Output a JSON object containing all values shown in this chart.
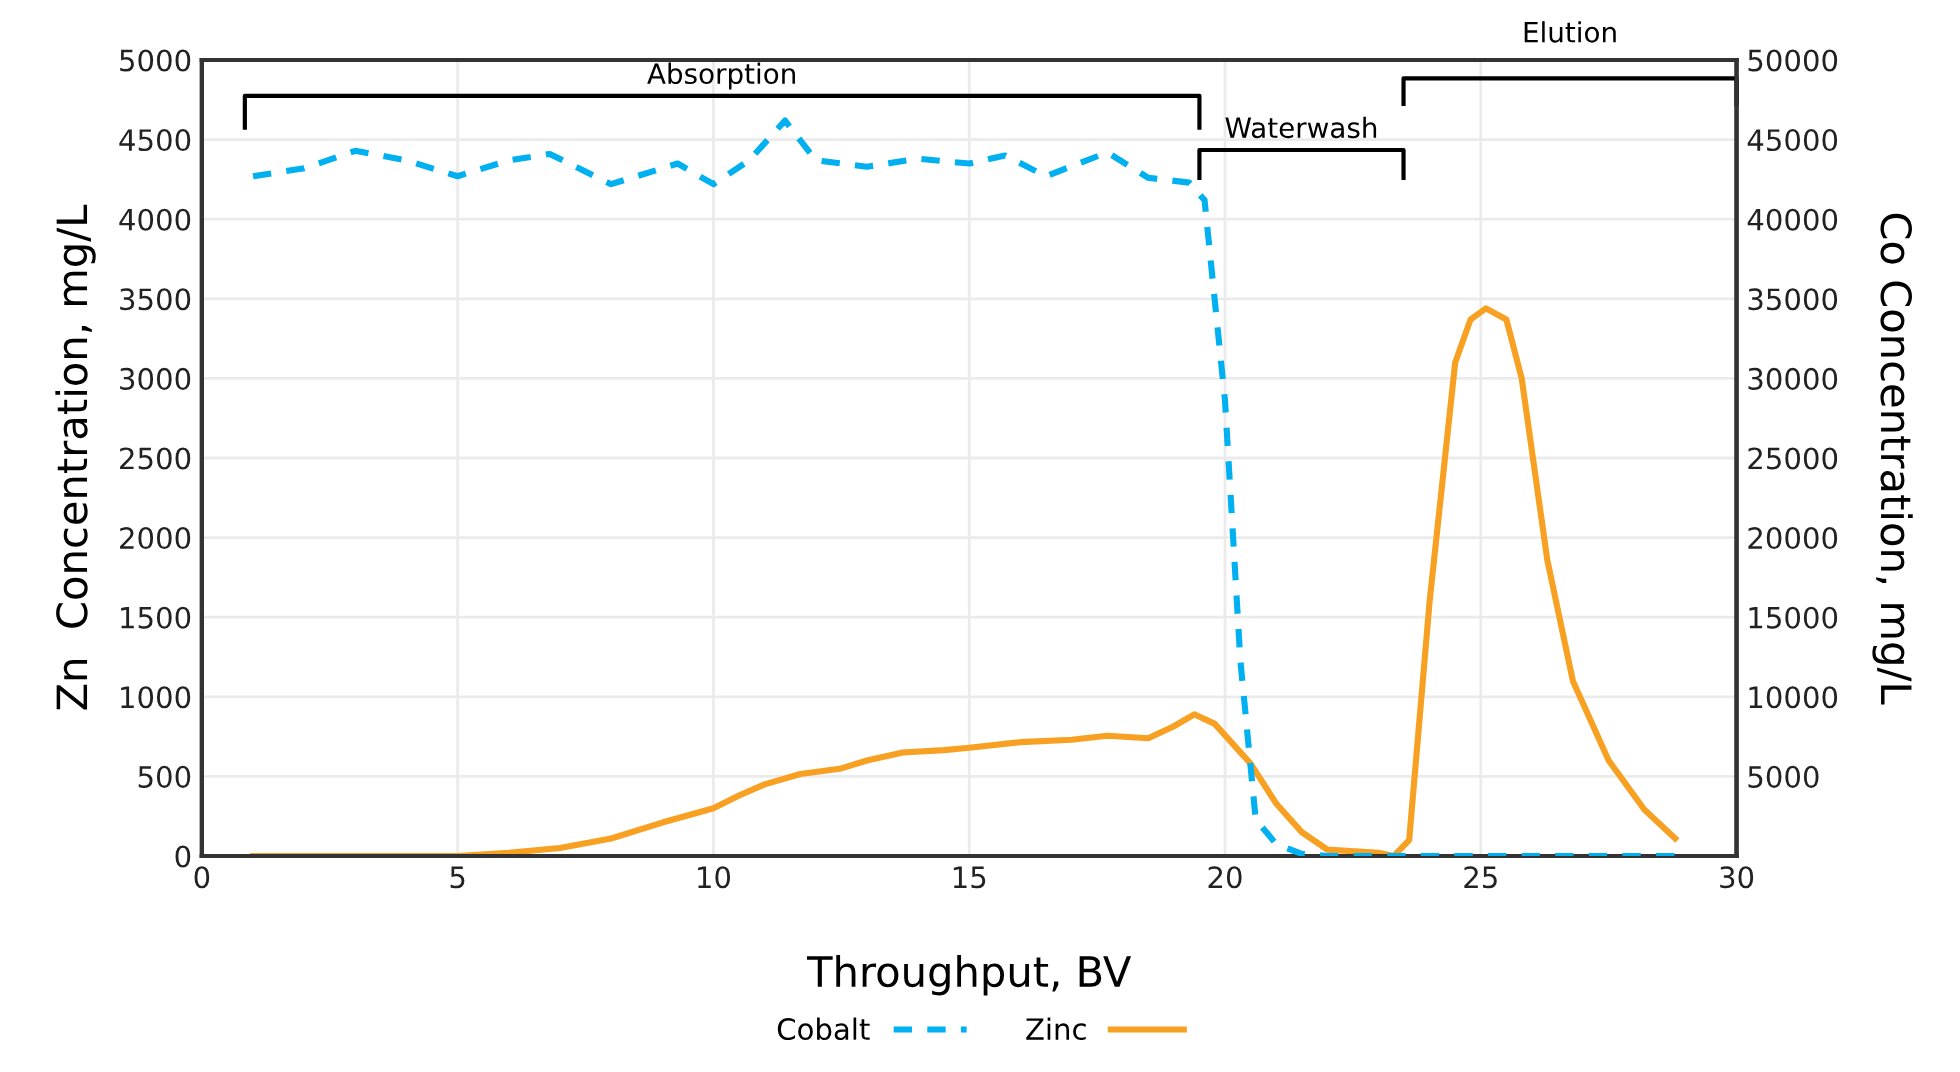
{
  "chart_data": {
    "type": "line",
    "xlabel": "Throughput, BV",
    "ylabel": "Zn  Concentration, mg/L",
    "y2label": "Co Concentration, mg/L",
    "xlim": [
      0,
      30
    ],
    "xticks": [
      0,
      5,
      10,
      15,
      20,
      25,
      30
    ],
    "ylim": [
      0,
      5000
    ],
    "yticks": [
      0,
      500,
      1000,
      1500,
      2000,
      2500,
      3000,
      3500,
      4000,
      4500,
      5000
    ],
    "y2lim": [
      0,
      50000
    ],
    "y2ticks": [
      5000,
      10000,
      15000,
      20000,
      25000,
      30000,
      35000,
      40000,
      45000,
      50000
    ],
    "grid": true,
    "legend": "bottom",
    "annotations": [
      "Absorption",
      "Waterwash",
      "Elution"
    ],
    "series": [
      {
        "name": "Cobalt",
        "color": "#00b0f0",
        "axis": "y2",
        "line_style": "dashed",
        "x": [
          1,
          2,
          3,
          4,
          5,
          6,
          6.8,
          8,
          9.3,
          10,
          10.7,
          11.4,
          12,
          13,
          14,
          15,
          15.7,
          16.5,
          17.7,
          18.5,
          19.3,
          19.6,
          20,
          20.3,
          20.6,
          21,
          21.5,
          22,
          24,
          26,
          28.8
        ],
        "values": [
          42700,
          43200,
          44300,
          43700,
          42700,
          43700,
          44100,
          42200,
          43500,
          42200,
          43700,
          46200,
          43700,
          43300,
          43800,
          43500,
          44000,
          42700,
          44200,
          42600,
          42300,
          41200,
          28600,
          12300,
          2300,
          750,
          130,
          0,
          0,
          0,
          0
        ]
      },
      {
        "name": "Zinc",
        "color": "#f7a021",
        "axis": "y",
        "line_style": "solid",
        "x": [
          1,
          5,
          6,
          7,
          8,
          9,
          10,
          10.5,
          11,
          11.7,
          12.5,
          13,
          13.7,
          14.5,
          15,
          16,
          17,
          17.7,
          18.5,
          19,
          19.4,
          19.8,
          20.5,
          21,
          21.5,
          22,
          23,
          23.3,
          23.6,
          24,
          24.5,
          24.8,
          25.1,
          25.5,
          25.8,
          26.3,
          26.8,
          27.5,
          28.2,
          28.8
        ],
        "values": [
          0,
          0,
          20,
          50,
          110,
          210,
          300,
          380,
          450,
          515,
          550,
          600,
          650,
          665,
          680,
          715,
          730,
          755,
          740,
          815,
          890,
          830,
          580,
          330,
          150,
          40,
          20,
          0,
          100,
          1600,
          3100,
          3370,
          3440,
          3370,
          3000,
          1860,
          1100,
          600,
          290,
          110
        ]
      }
    ]
  }
}
